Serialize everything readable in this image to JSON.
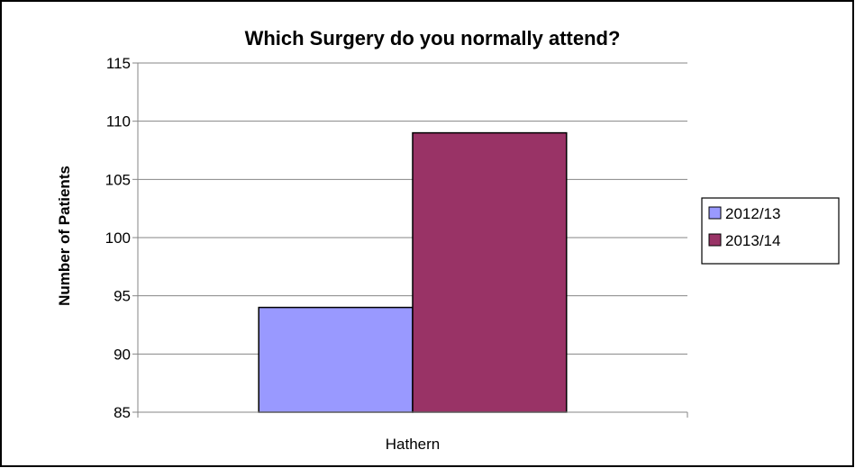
{
  "chart_data": {
    "type": "bar",
    "title": "Which Surgery do you normally attend?",
    "xlabel": "",
    "ylabel": "Number of Patients",
    "categories": [
      "Hathern"
    ],
    "series": [
      {
        "name": "2012/13",
        "values": [
          94
        ],
        "color": "#9999FF"
      },
      {
        "name": "2013/14",
        "values": [
          109
        ],
        "color": "#993366"
      }
    ],
    "ylim": [
      85,
      115
    ],
    "yticks": [
      85,
      90,
      95,
      100,
      105,
      110,
      115
    ],
    "grid": true,
    "legend_position": "right"
  }
}
